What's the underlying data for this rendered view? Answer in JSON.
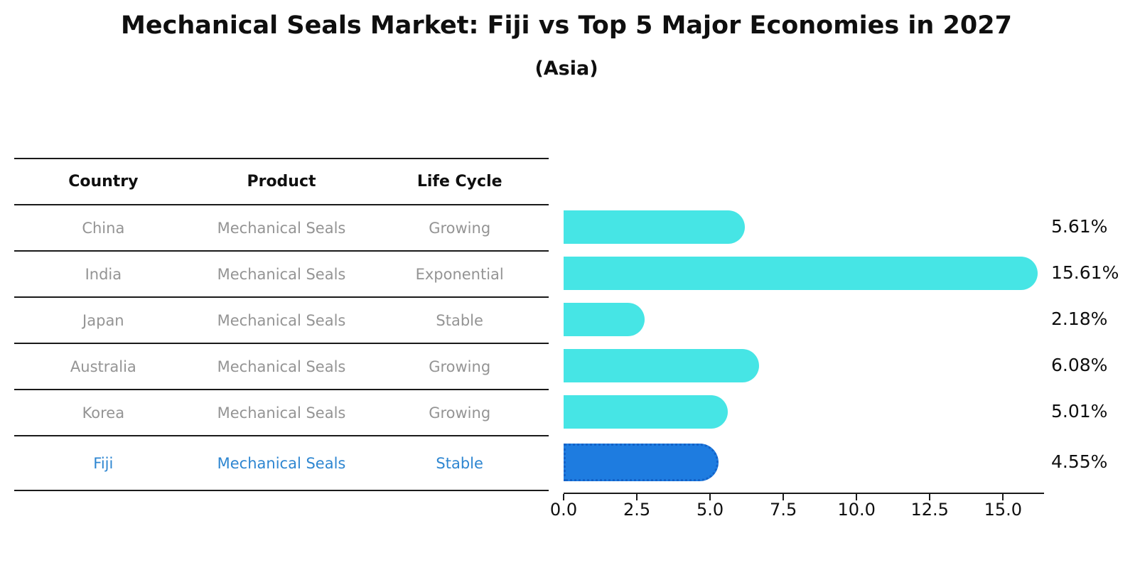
{
  "header": {
    "title": "Mechanical Seals Market: Fiji vs Top 5 Major Economies in 2027",
    "subtitle": "(Asia)"
  },
  "table": {
    "columns": [
      "Country",
      "Product",
      "Life Cycle"
    ],
    "rows": [
      {
        "country": "China",
        "product": "Mechanical Seals",
        "life_cycle": "Growing",
        "highlight": false
      },
      {
        "country": "India",
        "product": "Mechanical Seals",
        "life_cycle": "Exponential",
        "highlight": false
      },
      {
        "country": "Japan",
        "product": "Mechanical Seals",
        "life_cycle": "Stable",
        "highlight": false
      },
      {
        "country": "Australia",
        "product": "Mechanical Seals",
        "life_cycle": "Growing",
        "highlight": false
      },
      {
        "country": "Korea",
        "product": "Mechanical Seals",
        "life_cycle": "Growing",
        "highlight": false
      },
      {
        "country": "Fiji",
        "product": "Mechanical Seals",
        "life_cycle": "Stable",
        "highlight": true
      }
    ]
  },
  "chart_data": {
    "type": "bar",
    "orientation": "horizontal",
    "title": "Mechanical Seals Market: Fiji vs Top 5 Major Economies in 2027 (Asia)",
    "categories": [
      "China",
      "India",
      "Japan",
      "Australia",
      "Korea",
      "Fiji"
    ],
    "values": [
      5.61,
      15.61,
      2.18,
      6.08,
      5.01,
      4.55
    ],
    "value_labels": [
      "5.61%",
      "15.61%",
      "2.18%",
      "6.08%",
      "5.01%",
      "4.55%"
    ],
    "x_tick_labels": [
      "0.0",
      "2.5",
      "5.0",
      "7.5",
      "10.0",
      "12.5",
      "15.0"
    ],
    "xlim": [
      0,
      16.4
    ],
    "grid": false,
    "legend": false,
    "highlight_index": 5,
    "colors": {
      "bar": "#46e5e5",
      "highlight_bar": "#1e7ce0",
      "highlight_border": "#1462c8",
      "row_text": "#949494",
      "highlight_text": "#2e86d1",
      "axis": "#1a1a1a"
    }
  }
}
